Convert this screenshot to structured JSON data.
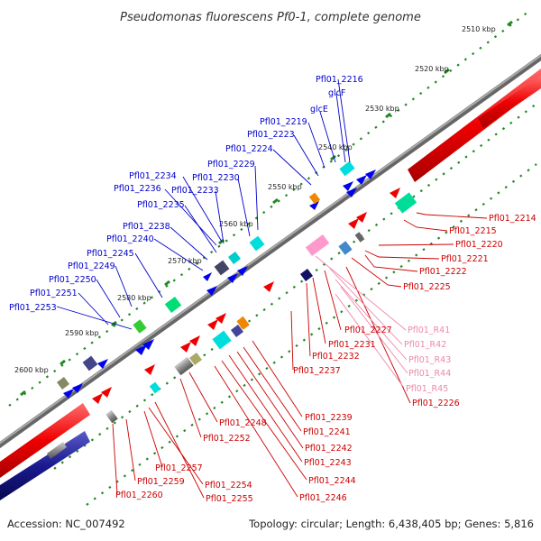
{
  "title": "Pseudomonas fluorescens Pf0-1, complete genome",
  "footer": {
    "accession": "Accession: NC_007492",
    "topology": "Topology: circular; Length: 6,438,405 bp; Genes: 5,816"
  },
  "kbp_labels": [
    "2510 kbp",
    "2520 kbp",
    "2530 kbp",
    "2540 kbp",
    "2550 kbp",
    "2560 kbp",
    "2570 kbp",
    "2580 kbp",
    "2590 kbp",
    "2600 kbp"
  ],
  "top_labels": [
    "Pfl01_2216",
    "glcF",
    "glcE",
    "Pfl01_2219",
    "Pfl01_2223",
    "Pfl01_2224",
    "Pfl01_2229",
    "Pfl01_2230",
    "Pfl01_2234",
    "Pfl01_2236",
    "Pfl01_2233",
    "Pfl01_2235",
    "Pfl01_2238",
    "Pfl01_2240",
    "Pfl01_2245",
    "Pfl01_2249",
    "Pfl01_2250",
    "Pfl01_2251",
    "Pfl01_2253"
  ],
  "right_labels": [
    "Pfl01_2214",
    "Pfl01_2215",
    "Pfl01_2220",
    "Pfl01_2221",
    "Pfl01_2222",
    "Pfl01_2225"
  ],
  "pink_labels": [
    "Pfl01_R41",
    "Pfl01_R42",
    "Pfl01_R43",
    "Pfl01_R44",
    "Pfl01_R45"
  ],
  "lower_labels": [
    "Pfl01_2227",
    "Pfl01_2231",
    "Pfl01_2232",
    "Pfl01_2237",
    "Pfl01_2226",
    "Pfl01_2239",
    "Pfl01_2241",
    "Pfl01_2242",
    "Pfl01_2243",
    "Pfl01_2244",
    "Pfl01_2246",
    "Pfl01_2248",
    "Pfl01_2252",
    "Pfl01_2257",
    "Pfl01_2254",
    "Pfl01_2255",
    "Pfl01_2259",
    "Pfl01_2260"
  ],
  "colors": {
    "label_blue": "#0000cc",
    "label_red": "#cc0000",
    "label_pink": "#ee88aa",
    "forward_strand": "#ee1111",
    "reverse_strand": "#111188",
    "backbone": "#888888",
    "scale_dots": "#228822"
  }
}
